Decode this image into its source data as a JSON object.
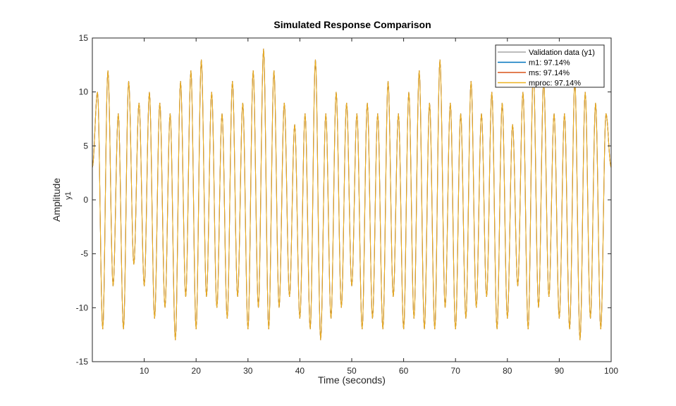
{
  "chart_data": {
    "type": "line",
    "title": "Simulated Response Comparison",
    "xlabel": "Time (seconds)",
    "ylabel": "Amplitude",
    "ylabel_sub": "y1",
    "xlim": [
      0,
      100
    ],
    "ylim": [
      -15,
      15
    ],
    "xticks": [
      10,
      20,
      30,
      40,
      50,
      60,
      70,
      80,
      90,
      100
    ],
    "yticks": [
      -15,
      -10,
      -5,
      0,
      5,
      10,
      15
    ],
    "grid": false,
    "legend_position": "top-right",
    "x": [
      0,
      1,
      2,
      3,
      4,
      5,
      6,
      7,
      8,
      9,
      10,
      11,
      12,
      13,
      14,
      15,
      16,
      17,
      18,
      19,
      20,
      21,
      22,
      23,
      24,
      25,
      26,
      27,
      28,
      29,
      30,
      31,
      32,
      33,
      34,
      35,
      36,
      37,
      38,
      39,
      40,
      41,
      42,
      43,
      44,
      45,
      46,
      47,
      48,
      49,
      50,
      51,
      52,
      53,
      54,
      55,
      56,
      57,
      58,
      59,
      60,
      61,
      62,
      63,
      64,
      65,
      66,
      67,
      68,
      69,
      70,
      71,
      72,
      73,
      74,
      75,
      76,
      77,
      78,
      79,
      80,
      81,
      82,
      83,
      84,
      85,
      86,
      87,
      88,
      89,
      90,
      91,
      92,
      93,
      94,
      95,
      96,
      97,
      98,
      99,
      100
    ],
    "series": [
      {
        "name": "Validation data (y1)",
        "color": "#a6a6a6",
        "values": [
          3,
          10,
          -12,
          12,
          -8,
          8,
          -12,
          11,
          -6,
          9,
          -8,
          10,
          -11,
          9,
          -10,
          8,
          -13,
          11,
          -9,
          12,
          -12,
          13,
          -9,
          10,
          -10,
          8,
          -11,
          11,
          -9,
          9,
          -12,
          12,
          -10,
          14,
          -12,
          12,
          -10,
          9,
          -9,
          7,
          -11,
          8,
          -12,
          13,
          -13,
          8,
          -11,
          10,
          -10,
          9,
          -8,
          8,
          -12,
          9,
          -11,
          8,
          -12,
          11,
          -9,
          8,
          -12,
          10,
          -11,
          12,
          -12,
          9,
          -12,
          13,
          -10,
          9,
          -12,
          8,
          -11,
          11,
          -10,
          8,
          -9,
          10,
          -12,
          9,
          -11,
          7,
          -8,
          10,
          -12,
          12,
          -10,
          11,
          -9,
          8,
          -11,
          8,
          -12,
          11,
          -13,
          10,
          -11,
          9,
          -12,
          8,
          3
        ]
      },
      {
        "name": "m1: 97.14%",
        "color": "#0072bd",
        "values": [
          3,
          10,
          -12,
          12,
          -8,
          8,
          -12,
          11,
          -6,
          9,
          -8,
          10,
          -11,
          9,
          -10,
          8,
          -13,
          11,
          -9,
          12,
          -12,
          13,
          -9,
          10,
          -10,
          8,
          -11,
          11,
          -9,
          9,
          -12,
          12,
          -10,
          14,
          -12,
          12,
          -10,
          9,
          -9,
          7,
          -11,
          8,
          -12,
          13,
          -13,
          8,
          -11,
          10,
          -10,
          9,
          -8,
          8,
          -12,
          9,
          -11,
          8,
          -12,
          11,
          -9,
          8,
          -12,
          10,
          -11,
          12,
          -12,
          9,
          -12,
          13,
          -10,
          9,
          -12,
          8,
          -11,
          11,
          -10,
          8,
          -9,
          10,
          -12,
          9,
          -11,
          7,
          -8,
          10,
          -12,
          12,
          -10,
          11,
          -9,
          8,
          -11,
          8,
          -12,
          11,
          -13,
          10,
          -11,
          9,
          -12,
          8,
          3
        ]
      },
      {
        "name": "ms: 97.14%",
        "color": "#d95319",
        "values": [
          3,
          10,
          -12,
          12,
          -8,
          8,
          -12,
          11,
          -6,
          9,
          -8,
          10,
          -11,
          9,
          -10,
          8,
          -13,
          11,
          -9,
          12,
          -12,
          13,
          -9,
          10,
          -10,
          8,
          -11,
          11,
          -9,
          9,
          -12,
          12,
          -10,
          14,
          -12,
          12,
          -10,
          9,
          -9,
          7,
          -11,
          8,
          -12,
          13,
          -13,
          8,
          -11,
          10,
          -10,
          9,
          -8,
          8,
          -12,
          9,
          -11,
          8,
          -12,
          11,
          -9,
          8,
          -12,
          10,
          -11,
          12,
          -12,
          9,
          -12,
          13,
          -10,
          9,
          -12,
          8,
          -11,
          11,
          -10,
          8,
          -9,
          10,
          -12,
          9,
          -11,
          7,
          -8,
          10,
          -12,
          12,
          -10,
          11,
          -9,
          8,
          -11,
          8,
          -12,
          11,
          -13,
          10,
          -11,
          9,
          -12,
          8,
          3
        ]
      },
      {
        "name": "mproc: 97.14%",
        "color": "#edb120",
        "values": [
          3,
          10,
          -12,
          12,
          -8,
          8,
          -12,
          11,
          -6,
          9,
          -8,
          10,
          -11,
          9,
          -10,
          8,
          -13,
          11,
          -9,
          12,
          -12,
          13,
          -9,
          10,
          -10,
          8,
          -11,
          11,
          -9,
          9,
          -12,
          12,
          -10,
          14,
          -12,
          12,
          -10,
          9,
          -9,
          7,
          -11,
          8,
          -12,
          13,
          -13,
          8,
          -11,
          10,
          -10,
          9,
          -8,
          8,
          -12,
          9,
          -11,
          8,
          -12,
          11,
          -9,
          8,
          -12,
          10,
          -11,
          12,
          -12,
          9,
          -12,
          13,
          -10,
          9,
          -12,
          8,
          -11,
          11,
          -10,
          8,
          -9,
          10,
          -12,
          9,
          -11,
          7,
          -8,
          10,
          -12,
          12,
          -10,
          11,
          -9,
          8,
          -11,
          8,
          -12,
          11,
          -13,
          10,
          -11,
          9,
          -12,
          8,
          3
        ]
      }
    ]
  }
}
